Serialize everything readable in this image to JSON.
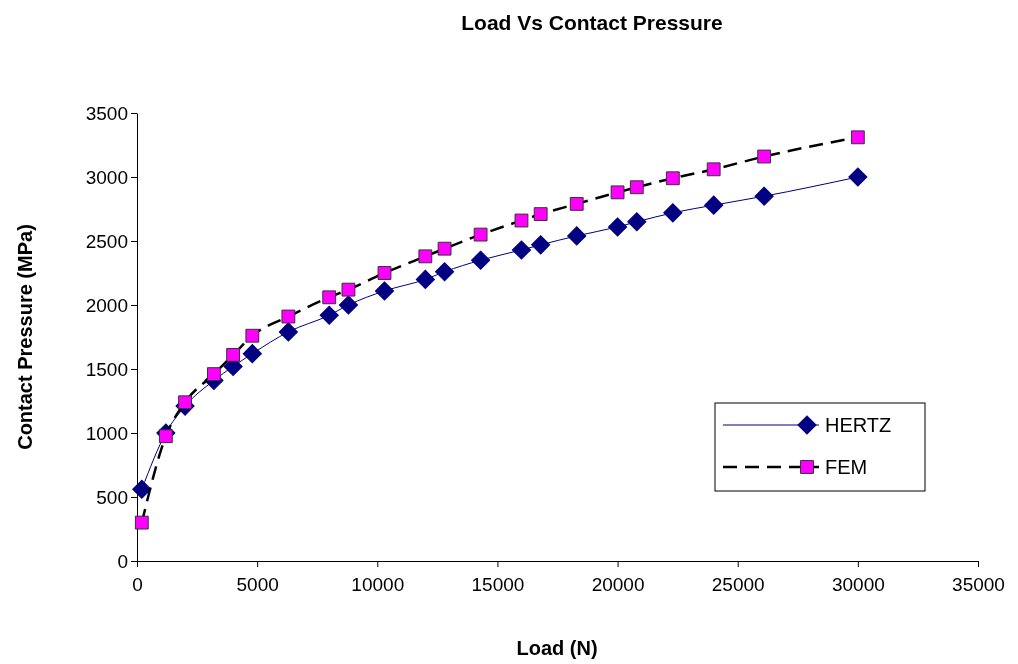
{
  "chart_data": {
    "type": "line",
    "title": "Load Vs Contact Pressure",
    "xlabel": "Load (N)",
    "ylabel": "Contact Pressure (MPa)",
    "x": [
      200,
      1200,
      2000,
      3200,
      4000,
      4800,
      6300,
      8000,
      8800,
      10300,
      12000,
      12800,
      14300,
      16000,
      16800,
      18300,
      20000,
      20800,
      22300,
      24000,
      26100,
      30000
    ],
    "series": [
      {
        "name": "HERTZ",
        "color": "#000080",
        "marker": "diamond",
        "line_style": "solid",
        "values": [
          560,
          1000,
          1210,
          1410,
          1520,
          1620,
          1790,
          1920,
          2000,
          2110,
          2200,
          2260,
          2350,
          2430,
          2470,
          2540,
          2610,
          2650,
          2720,
          2780,
          2850,
          3000
        ]
      },
      {
        "name": "FEM",
        "color": "#ff00ff",
        "marker": "square",
        "line_style": "dashed",
        "values": [
          300,
          975,
          1240,
          1460,
          1610,
          1760,
          1910,
          2060,
          2120,
          2250,
          2380,
          2440,
          2550,
          2660,
          2710,
          2790,
          2880,
          2920,
          2990,
          3060,
          3160,
          3310
        ]
      }
    ],
    "xlim": [
      0,
      35000
    ],
    "xticks": [
      0,
      5000,
      10000,
      15000,
      20000,
      25000,
      30000,
      35000
    ],
    "ylim": [
      0,
      3500
    ],
    "yticks": [
      0,
      500,
      1000,
      1500,
      2000,
      2500,
      3000,
      3500
    ],
    "grid": false,
    "legend": "bottom right"
  }
}
